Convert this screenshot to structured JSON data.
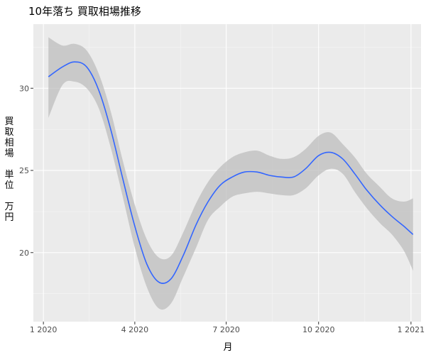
{
  "chart_data": {
    "type": "line",
    "title": "10年落ち 買取相場推移",
    "xlabel": "月",
    "ylabel_lines": [
      "買",
      "取",
      "相",
      "場",
      "",
      "単",
      "位",
      "",
      "万",
      "円"
    ],
    "x_ticks": [
      "1 2020",
      "4 2020",
      "7 2020",
      "10 2020",
      "1 2021"
    ],
    "y_ticks": [
      "20",
      "25",
      "30"
    ],
    "x_tick_positions": [
      "2020-01-01",
      "2020-04-01",
      "2020-07-01",
      "2020-10-01",
      "2021-01-01"
    ],
    "y_tick_values": [
      20,
      25,
      30
    ],
    "xlim": [
      "2019-12-22",
      "2021-01-11"
    ],
    "ylim": [
      15.8,
      33.9
    ],
    "grid": true,
    "series": [
      {
        "color": "#3366ff",
        "band_color": "#bebebe",
        "points": [
          {
            "x": "2020-01-06",
            "y": 30.7,
            "lo": 28.2,
            "hi": 33.1
          },
          {
            "x": "2020-01-20",
            "y": 31.3,
            "lo": 30.2,
            "hi": 32.6
          },
          {
            "x": "2020-02-01",
            "y": 31.6,
            "lo": 30.4,
            "hi": 32.7
          },
          {
            "x": "2020-02-13",
            "y": 31.3,
            "lo": 30.0,
            "hi": 32.3
          },
          {
            "x": "2020-02-25",
            "y": 29.9,
            "lo": 28.8,
            "hi": 30.9
          },
          {
            "x": "2020-03-08",
            "y": 27.5,
            "lo": 26.4,
            "hi": 28.6
          },
          {
            "x": "2020-03-20",
            "y": 24.5,
            "lo": 23.4,
            "hi": 25.6
          },
          {
            "x": "2020-04-01",
            "y": 21.6,
            "lo": 20.3,
            "hi": 22.9
          },
          {
            "x": "2020-04-13",
            "y": 19.3,
            "lo": 17.9,
            "hi": 20.8
          },
          {
            "x": "2020-04-25",
            "y": 18.2,
            "lo": 16.6,
            "hi": 19.7
          },
          {
            "x": "2020-05-07",
            "y": 18.4,
            "lo": 16.9,
            "hi": 19.8
          },
          {
            "x": "2020-05-19",
            "y": 19.8,
            "lo": 18.5,
            "hi": 21.2
          },
          {
            "x": "2020-06-01",
            "y": 21.7,
            "lo": 20.3,
            "hi": 23.0
          },
          {
            "x": "2020-06-13",
            "y": 23.1,
            "lo": 22.0,
            "hi": 24.3
          },
          {
            "x": "2020-06-25",
            "y": 24.1,
            "lo": 22.8,
            "hi": 25.2
          },
          {
            "x": "2020-07-07",
            "y": 24.6,
            "lo": 23.4,
            "hi": 25.8
          },
          {
            "x": "2020-07-19",
            "y": 24.9,
            "lo": 23.6,
            "hi": 26.1
          },
          {
            "x": "2020-08-01",
            "y": 24.9,
            "lo": 23.7,
            "hi": 26.2
          },
          {
            "x": "2020-08-13",
            "y": 24.7,
            "lo": 23.6,
            "hi": 25.9
          },
          {
            "x": "2020-08-25",
            "y": 24.6,
            "lo": 23.5,
            "hi": 25.7
          },
          {
            "x": "2020-09-06",
            "y": 24.6,
            "lo": 23.5,
            "hi": 25.8
          },
          {
            "x": "2020-09-18",
            "y": 25.1,
            "lo": 23.9,
            "hi": 26.3
          },
          {
            "x": "2020-10-01",
            "y": 25.9,
            "lo": 24.7,
            "hi": 27.1
          },
          {
            "x": "2020-10-13",
            "y": 26.1,
            "lo": 25.1,
            "hi": 27.3
          },
          {
            "x": "2020-10-25",
            "y": 25.7,
            "lo": 24.8,
            "hi": 26.6
          },
          {
            "x": "2020-11-06",
            "y": 24.8,
            "lo": 23.7,
            "hi": 25.8
          },
          {
            "x": "2020-11-18",
            "y": 23.8,
            "lo": 22.7,
            "hi": 24.8
          },
          {
            "x": "2020-12-01",
            "y": 22.9,
            "lo": 21.8,
            "hi": 24.0
          },
          {
            "x": "2020-12-13",
            "y": 22.2,
            "lo": 21.1,
            "hi": 23.3
          },
          {
            "x": "2020-12-25",
            "y": 21.6,
            "lo": 20.1,
            "hi": 23.1
          },
          {
            "x": "2021-01-03",
            "y": 21.1,
            "lo": 18.9,
            "hi": 23.3
          }
        ]
      }
    ]
  }
}
